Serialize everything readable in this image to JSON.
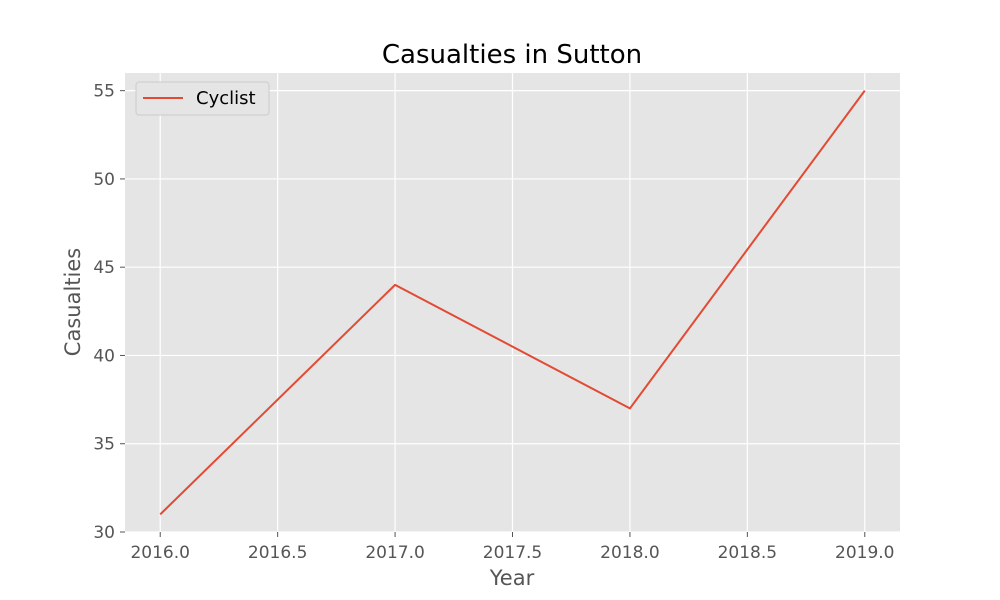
{
  "chart_data": {
    "type": "line",
    "title": "Casualties in Sutton",
    "xlabel": "Year",
    "ylabel": "Casualties",
    "xlim": [
      2015.85,
      2019.15
    ],
    "ylim": [
      30,
      56
    ],
    "xticks": [
      2016.0,
      2016.5,
      2017.0,
      2017.5,
      2018.0,
      2018.5,
      2019.0
    ],
    "xtick_labels": [
      "2016.0",
      "2016.5",
      "2017.0",
      "2017.5",
      "2018.0",
      "2018.5",
      "2019.0"
    ],
    "yticks": [
      30,
      35,
      40,
      45,
      50,
      55
    ],
    "ytick_labels": [
      "30",
      "35",
      "40",
      "45",
      "50",
      "55"
    ],
    "grid": true,
    "legend_position": "top-left",
    "background_color": "#e5e5e5",
    "grid_color": "#ffffff",
    "series": [
      {
        "name": "Cyclist",
        "color": "#e24a33",
        "x": [
          2016,
          2017,
          2018,
          2019
        ],
        "y": [
          31,
          44,
          37,
          55
        ]
      }
    ]
  }
}
